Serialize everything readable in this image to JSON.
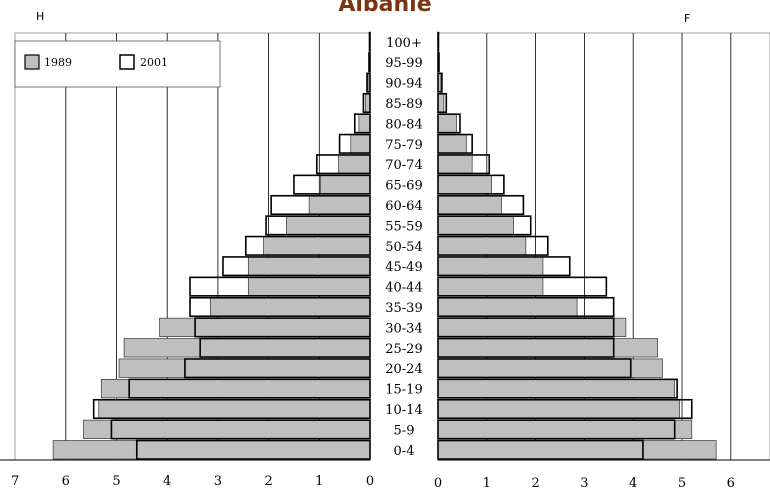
{
  "chart_data": {
    "type": "bar",
    "title": "Albanie",
    "left_label": "H",
    "right_label": "F",
    "categories": [
      "0-4",
      "5-9",
      "10-14",
      "15-19",
      "20-24",
      "25-29",
      "30-34",
      "35-39",
      "40-44",
      "45-49",
      "50-54",
      "55-59",
      "60-64",
      "65-69",
      "70-74",
      "75-79",
      "80-84",
      "85-89",
      "90-94",
      "95-99",
      "100+"
    ],
    "series": [
      {
        "name": "1989",
        "color": "#bfbfbf",
        "male": [
          6.25,
          5.65,
          5.35,
          5.3,
          4.95,
          4.85,
          4.15,
          3.15,
          2.4,
          2.4,
          2.1,
          1.65,
          1.2,
          0.98,
          0.62,
          0.38,
          0.22,
          0.09,
          0.04,
          0.01,
          0.01
        ],
        "female": [
          5.7,
          5.2,
          4.95,
          4.85,
          4.6,
          4.5,
          3.85,
          2.85,
          2.15,
          2.15,
          1.8,
          1.55,
          1.3,
          1.1,
          0.7,
          0.58,
          0.38,
          0.12,
          0.06,
          0.02,
          0.01
        ]
      },
      {
        "name": "2001",
        "color": "#ffffff",
        "male": [
          4.6,
          5.1,
          5.45,
          4.75,
          3.65,
          3.35,
          3.45,
          3.55,
          3.55,
          2.9,
          2.45,
          2.05,
          1.95,
          1.5,
          1.05,
          0.6,
          0.3,
          0.13,
          0.06,
          0.02,
          0.01
        ],
        "female": [
          4.2,
          4.85,
          5.2,
          4.9,
          3.95,
          3.6,
          3.6,
          3.6,
          3.45,
          2.7,
          2.25,
          1.9,
          1.75,
          1.35,
          1.05,
          0.7,
          0.45,
          0.17,
          0.08,
          0.02,
          0.01
        ]
      }
    ],
    "left_ticks": [
      7,
      6,
      5,
      4,
      3,
      2,
      1,
      0
    ],
    "right_ticks": [
      0,
      1,
      2,
      3,
      4,
      5,
      6
    ],
    "xlim_left": [
      0,
      7
    ],
    "xlim_right": [
      0,
      6.8
    ],
    "legend_position": "top-left",
    "grid": true
  }
}
